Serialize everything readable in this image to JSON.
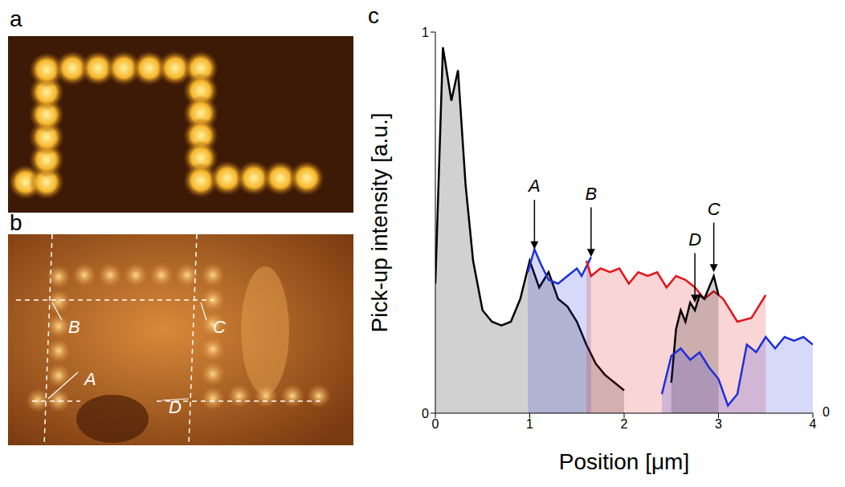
{
  "panel_letters": [
    "a",
    "b",
    "c"
  ],
  "image_b_labels": [
    "B",
    "C",
    "A",
    "D"
  ],
  "chart_data": {
    "type": "line",
    "x_label": "Position [μm]",
    "y_label": "Pick-up intensity [a.u.]",
    "xlim": [
      0,
      4
    ],
    "xticks": [
      0,
      1,
      2,
      3,
      4
    ],
    "ylim": [
      0,
      1
    ],
    "yticks": [
      0,
      1
    ],
    "z_ticks": [
      0
    ],
    "grid": false,
    "series": [
      {
        "color": "#000000",
        "x": [
          0,
          0.08,
          0.17,
          0.24,
          0.32,
          0.4,
          0.5,
          0.6,
          0.7,
          0.8,
          0.9,
          1.0,
          1.1,
          1.2,
          1.3,
          1.4,
          1.5,
          1.6,
          1.7,
          1.8,
          1.9,
          2.0
        ],
        "values": [
          0.34,
          0.96,
          0.82,
          0.9,
          0.6,
          0.4,
          0.27,
          0.24,
          0.23,
          0.24,
          0.3,
          0.4,
          0.33,
          0.37,
          0.3,
          0.28,
          0.24,
          0.18,
          0.13,
          0.1,
          0.08,
          0.06
        ]
      },
      {
        "color": "#1f2fd6",
        "x": [
          0.98,
          1.05,
          1.12,
          1.2,
          1.3,
          1.4,
          1.5,
          1.55,
          1.65
        ],
        "values": [
          0.37,
          0.43,
          0.39,
          0.35,
          0.34,
          0.36,
          0.38,
          0.36,
          0.41
        ]
      },
      {
        "color": "#e0161c",
        "x": [
          1.6,
          1.65,
          1.75,
          1.85,
          1.95,
          2.05,
          2.15,
          2.25,
          2.35,
          2.45,
          2.55,
          2.65,
          2.75,
          2.85,
          2.95,
          3.05,
          3.2,
          3.35,
          3.5
        ],
        "values": [
          0.4,
          0.36,
          0.38,
          0.37,
          0.38,
          0.34,
          0.37,
          0.36,
          0.37,
          0.33,
          0.36,
          0.35,
          0.33,
          0.3,
          0.32,
          0.3,
          0.24,
          0.25,
          0.31
        ]
      },
      {
        "color": "#000000",
        "x": [
          2.5,
          2.55,
          2.6,
          2.65,
          2.7,
          2.75,
          2.8,
          2.85,
          2.9,
          2.95,
          3.0
        ],
        "values": [
          0.08,
          0.22,
          0.27,
          0.24,
          0.29,
          0.27,
          0.31,
          0.3,
          0.33,
          0.36,
          0.31
        ]
      },
      {
        "color": "#1f2fd6",
        "x": [
          2.4,
          2.5,
          2.6,
          2.7,
          2.8,
          2.9,
          3.0,
          3.1,
          3.2,
          3.3,
          3.4,
          3.5,
          3.6,
          3.7,
          3.8,
          3.9,
          4.0
        ],
        "values": [
          0.05,
          0.15,
          0.17,
          0.14,
          0.16,
          0.12,
          0.09,
          0.02,
          0.05,
          0.18,
          0.16,
          0.2,
          0.17,
          0.2,
          0.19,
          0.2,
          0.18
        ]
      }
    ],
    "annotations": [
      {
        "text": "A",
        "x": 1.05,
        "y": 0.43
      },
      {
        "text": "B",
        "x": 1.65,
        "y": 0.41
      },
      {
        "text": "C",
        "x": 2.95,
        "y": 0.37
      },
      {
        "text": "D",
        "x": 2.75,
        "y": 0.29
      }
    ]
  }
}
